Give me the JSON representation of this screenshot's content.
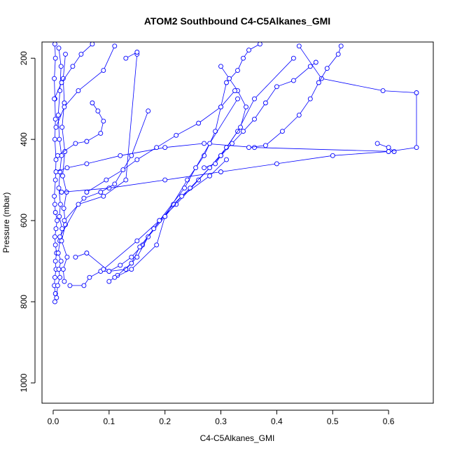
{
  "chart_data": {
    "type": "line",
    "title": "ATOM2 Southbound C4-C5Alkanes_GMI",
    "xlabel": "C4-C5Alkanes_GMI",
    "ylabel": "Pressure (mbar)",
    "xlim": [
      -0.02,
      0.68
    ],
    "ylim": [
      1050,
      160
    ],
    "y_inverted": true,
    "x_ticks": [
      0.0,
      0.1,
      0.2,
      0.3,
      0.4,
      0.5,
      0.6
    ],
    "x_tick_labels": [
      "0.0",
      "0.1",
      "0.2",
      "0.3",
      "0.4",
      "0.5",
      "0.6"
    ],
    "y_ticks": [
      200,
      400,
      600,
      800,
      1000
    ],
    "y_tick_labels": [
      "200",
      "400",
      "600",
      "800",
      "1000"
    ],
    "series_color": "#0000ff",
    "marker": "open-circle",
    "grid": false,
    "legend": "none",
    "series": [
      {
        "x": [
          0.003,
          0.004,
          0.002,
          0.003,
          0.005,
          0.004,
          0.006,
          0.004,
          0.003,
          0.005,
          0.007,
          0.004,
          0.003,
          0.002,
          0.004,
          0.005,
          0.003,
          0.004,
          0.003,
          0.002,
          0.004,
          0.003
        ],
        "y": [
          800,
          780,
          760,
          740,
          720,
          700,
          680,
          660,
          640,
          620,
          600,
          580,
          560,
          540,
          500,
          450,
          400,
          350,
          300,
          250,
          200,
          165
        ]
      },
      {
        "x": [
          0.006,
          0.008,
          0.012,
          0.01,
          0.014,
          0.009,
          0.012,
          0.016,
          0.011,
          0.013,
          0.01,
          0.012,
          0.015,
          0.011,
          0.009,
          0.012,
          0.014,
          0.01
        ],
        "y": [
          790,
          760,
          740,
          720,
          700,
          680,
          650,
          620,
          590,
          560,
          520,
          480,
          440,
          400,
          340,
          280,
          220,
          175
        ]
      },
      {
        "x": [
          0.02,
          0.018,
          0.025,
          0.015,
          0.022,
          0.019,
          0.024,
          0.017,
          0.021,
          0.016,
          0.02,
          0.018,
          0.022
        ],
        "y": [
          750,
          720,
          690,
          650,
          610,
          570,
          530,
          490,
          430,
          370,
          310,
          250,
          190
        ]
      },
      {
        "x": [
          0.03,
          0.055,
          0.065,
          0.085,
          0.1,
          0.12,
          0.14,
          0.16,
          0.19,
          0.22,
          0.26,
          0.3,
          0.33,
          0.36,
          0.43
        ],
        "y": [
          760,
          760,
          740,
          725,
          725,
          710,
          690,
          660,
          600,
          560,
          500,
          440,
          380,
          300,
          200
        ]
      },
      {
        "x": [
          0.04,
          0.06,
          0.1,
          0.13,
          0.15,
          0.17,
          0.2,
          0.24,
          0.27,
          0.29,
          0.3,
          0.31,
          0.33,
          0.34,
          0.35,
          0.37
        ],
        "y": [
          690,
          680,
          725,
          720,
          690,
          640,
          590,
          500,
          440,
          380,
          320,
          260,
          230,
          200,
          180,
          165
        ]
      },
      {
        "x": [
          0.1,
          0.115,
          0.14,
          0.155,
          0.18,
          0.215,
          0.245,
          0.28,
          0.31,
          0.335,
          0.345,
          0.33,
          0.315,
          0.3
        ],
        "y": [
          750,
          735,
          705,
          665,
          620,
          560,
          520,
          470,
          420,
          370,
          320,
          280,
          250,
          220
        ]
      },
      {
        "x": [
          0.005,
          0.025,
          0.06,
          0.12,
          0.2,
          0.27,
          0.36,
          0.61,
          0.6,
          0.58
        ],
        "y": [
          480,
          470,
          460,
          440,
          420,
          410,
          420,
          430,
          420,
          410
        ]
      },
      {
        "x": [
          0.015,
          0.1,
          0.2,
          0.3,
          0.4,
          0.5,
          0.6,
          0.65,
          0.65,
          0.59,
          0.48,
          0.44
        ],
        "y": [
          530,
          520,
          500,
          480,
          460,
          440,
          430,
          420,
          285,
          280,
          250,
          170
        ]
      },
      {
        "x": [
          0.008,
          0.04,
          0.06,
          0.085,
          0.09,
          0.08,
          0.07
        ],
        "y": [
          440,
          410,
          405,
          385,
          355,
          330,
          310
        ]
      },
      {
        "x": [
          0.02,
          0.055,
          0.085,
          0.11,
          0.14,
          0.17
        ],
        "y": [
          600,
          545,
          530,
          510,
          440,
          330
        ]
      },
      {
        "x": [
          0.012,
          0.045,
          0.09,
          0.13,
          0.15,
          0.15,
          0.13
        ],
        "y": [
          640,
          560,
          540,
          500,
          190,
          185,
          200
        ]
      },
      {
        "x": [
          0.35,
          0.38,
          0.41,
          0.44,
          0.46,
          0.475,
          0.49,
          0.51,
          0.515
        ],
        "y": [
          420,
          415,
          380,
          340,
          300,
          260,
          225,
          190,
          170
        ]
      },
      {
        "x": [
          0.27,
          0.29,
          0.3,
          0.32,
          0.34,
          0.36,
          0.38,
          0.4,
          0.43,
          0.46,
          0.47
        ],
        "y": [
          470,
          460,
          440,
          410,
          380,
          350,
          310,
          270,
          255,
          220,
          210
        ]
      },
      {
        "x": [
          0.09,
          0.15,
          0.19,
          0.235,
          0.255,
          0.28,
          0.33
        ],
        "y": [
          720,
          650,
          600,
          520,
          470,
          410,
          300
        ]
      },
      {
        "x": [
          0.11,
          0.14,
          0.185,
          0.2,
          0.23,
          0.28,
          0.31
        ],
        "y": [
          740,
          720,
          660,
          590,
          540,
          490,
          450
        ]
      },
      {
        "x": [
          0.06,
          0.095,
          0.125,
          0.15,
          0.185,
          0.22,
          0.26,
          0.3,
          0.325
        ],
        "y": [
          530,
          500,
          475,
          450,
          420,
          390,
          360,
          320,
          280
        ]
      },
      {
        "x": [
          0.002,
          0.015,
          0.035,
          0.05,
          0.07
        ],
        "y": [
          300,
          260,
          220,
          190,
          165
        ]
      },
      {
        "x": [
          0.005,
          0.02,
          0.045,
          0.09,
          0.11
        ],
        "y": [
          370,
          320,
          280,
          230,
          170
        ]
      }
    ]
  }
}
